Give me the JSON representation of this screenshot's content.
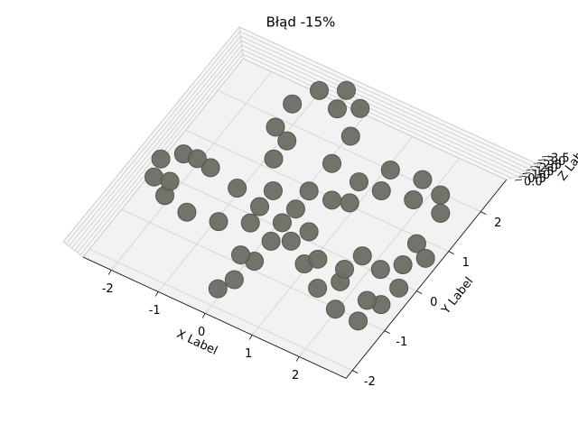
{
  "chart_data": {
    "type": "scatter3d",
    "title": "Błąd -15%",
    "xlabel": "X Label",
    "ylabel": "Y Label",
    "zlabel": "Z Label",
    "color": "#6b6b64",
    "xlim": [
      -2.6,
      3.0
    ],
    "ylim": [
      -2.2,
      2.8
    ],
    "zlim": [
      0,
      3.5
    ],
    "xticks": [
      -2,
      -1,
      0,
      1,
      2
    ],
    "yticks": [
      -2,
      -1,
      0,
      1,
      2
    ],
    "zticks": [
      {
        "value": 0,
        "label": "0.0"
      },
      0.5,
      {
        "value": 1,
        "label": "1.0"
      },
      1.5,
      {
        "value": 2,
        "label": "2.0"
      },
      2.5,
      {
        "value": 3,
        "label": "3.0"
      },
      3.5
    ],
    "grid": true,
    "x": [
      0.06,
      -0.49,
      -1.07,
      -1.74,
      -2.33,
      -2.62,
      -2.5,
      -2.1,
      -1.55,
      -0.94,
      -0.43,
      -2.06,
      -2.2,
      -0.48,
      -0.87,
      -1.24,
      -1.27,
      -1.02,
      -0.6,
      -0.16,
      0.04,
      0.09,
      0.08,
      0.1,
      -0.89,
      -0.51,
      0.55,
      0.74,
      1.08,
      1.7,
      2.17,
      2.4,
      1.81,
      1.2,
      0.86,
      0.43,
      0.92,
      1.43,
      1.97,
      2.47,
      2.62,
      2.69,
      2.35,
      1.7,
      1.07,
      0.59,
      0.12,
      0.11,
      0.03,
      -0.11,
      -0.18,
      1.72,
      2.17,
      2.41,
      2.46,
      1.61,
      2.73
    ],
    "y": [
      0.05,
      0.15,
      0.29,
      0.43,
      0.45,
      0.17,
      -0.21,
      -0.45,
      -0.56,
      -0.46,
      -0.22,
      0.48,
      -0.16,
      0.55,
      1.13,
      1.72,
      2.28,
      2.75,
      2.98,
      2.77,
      2.19,
      1.54,
      0.85,
      0.41,
      1.57,
      2.57,
      0.88,
      1.44,
      1.92,
      2.01,
      1.88,
      1.55,
      1.57,
      1.47,
      0.98,
      -0.21,
      -0.51,
      -0.84,
      -1.07,
      -1.09,
      -0.6,
      -0.15,
      -0.64,
      -0.53,
      -0.31,
      0.11,
      -0.38,
      -0.88,
      -1.38,
      -1.68,
      -0.88,
      0.15,
      0.06,
      0.83,
      0.33,
      -0.25,
      0.64
    ],
    "z": [
      1.5,
      1.6,
      1.8,
      2.0,
      2.1,
      2.0,
      1.8,
      1.6,
      1.4,
      1.3,
      1.4,
      2.1,
      1.9,
      1.7,
      1.9,
      2.1,
      2.3,
      2.4,
      2.4,
      2.3,
      2.1,
      1.9,
      1.7,
      1.6,
      2.0,
      2.3,
      1.6,
      1.7,
      1.8,
      1.9,
      1.9,
      1.8,
      1.7,
      1.6,
      1.6,
      1.4,
      1.3,
      1.2,
      1.1,
      1.0,
      1.1,
      1.2,
      1.1,
      1.2,
      1.3,
      1.5,
      1.4,
      1.2,
      1.0,
      0.9,
      1.2,
      0.8,
      0.7,
      0.9,
      0.8,
      0.9,
      0.8
    ]
  }
}
